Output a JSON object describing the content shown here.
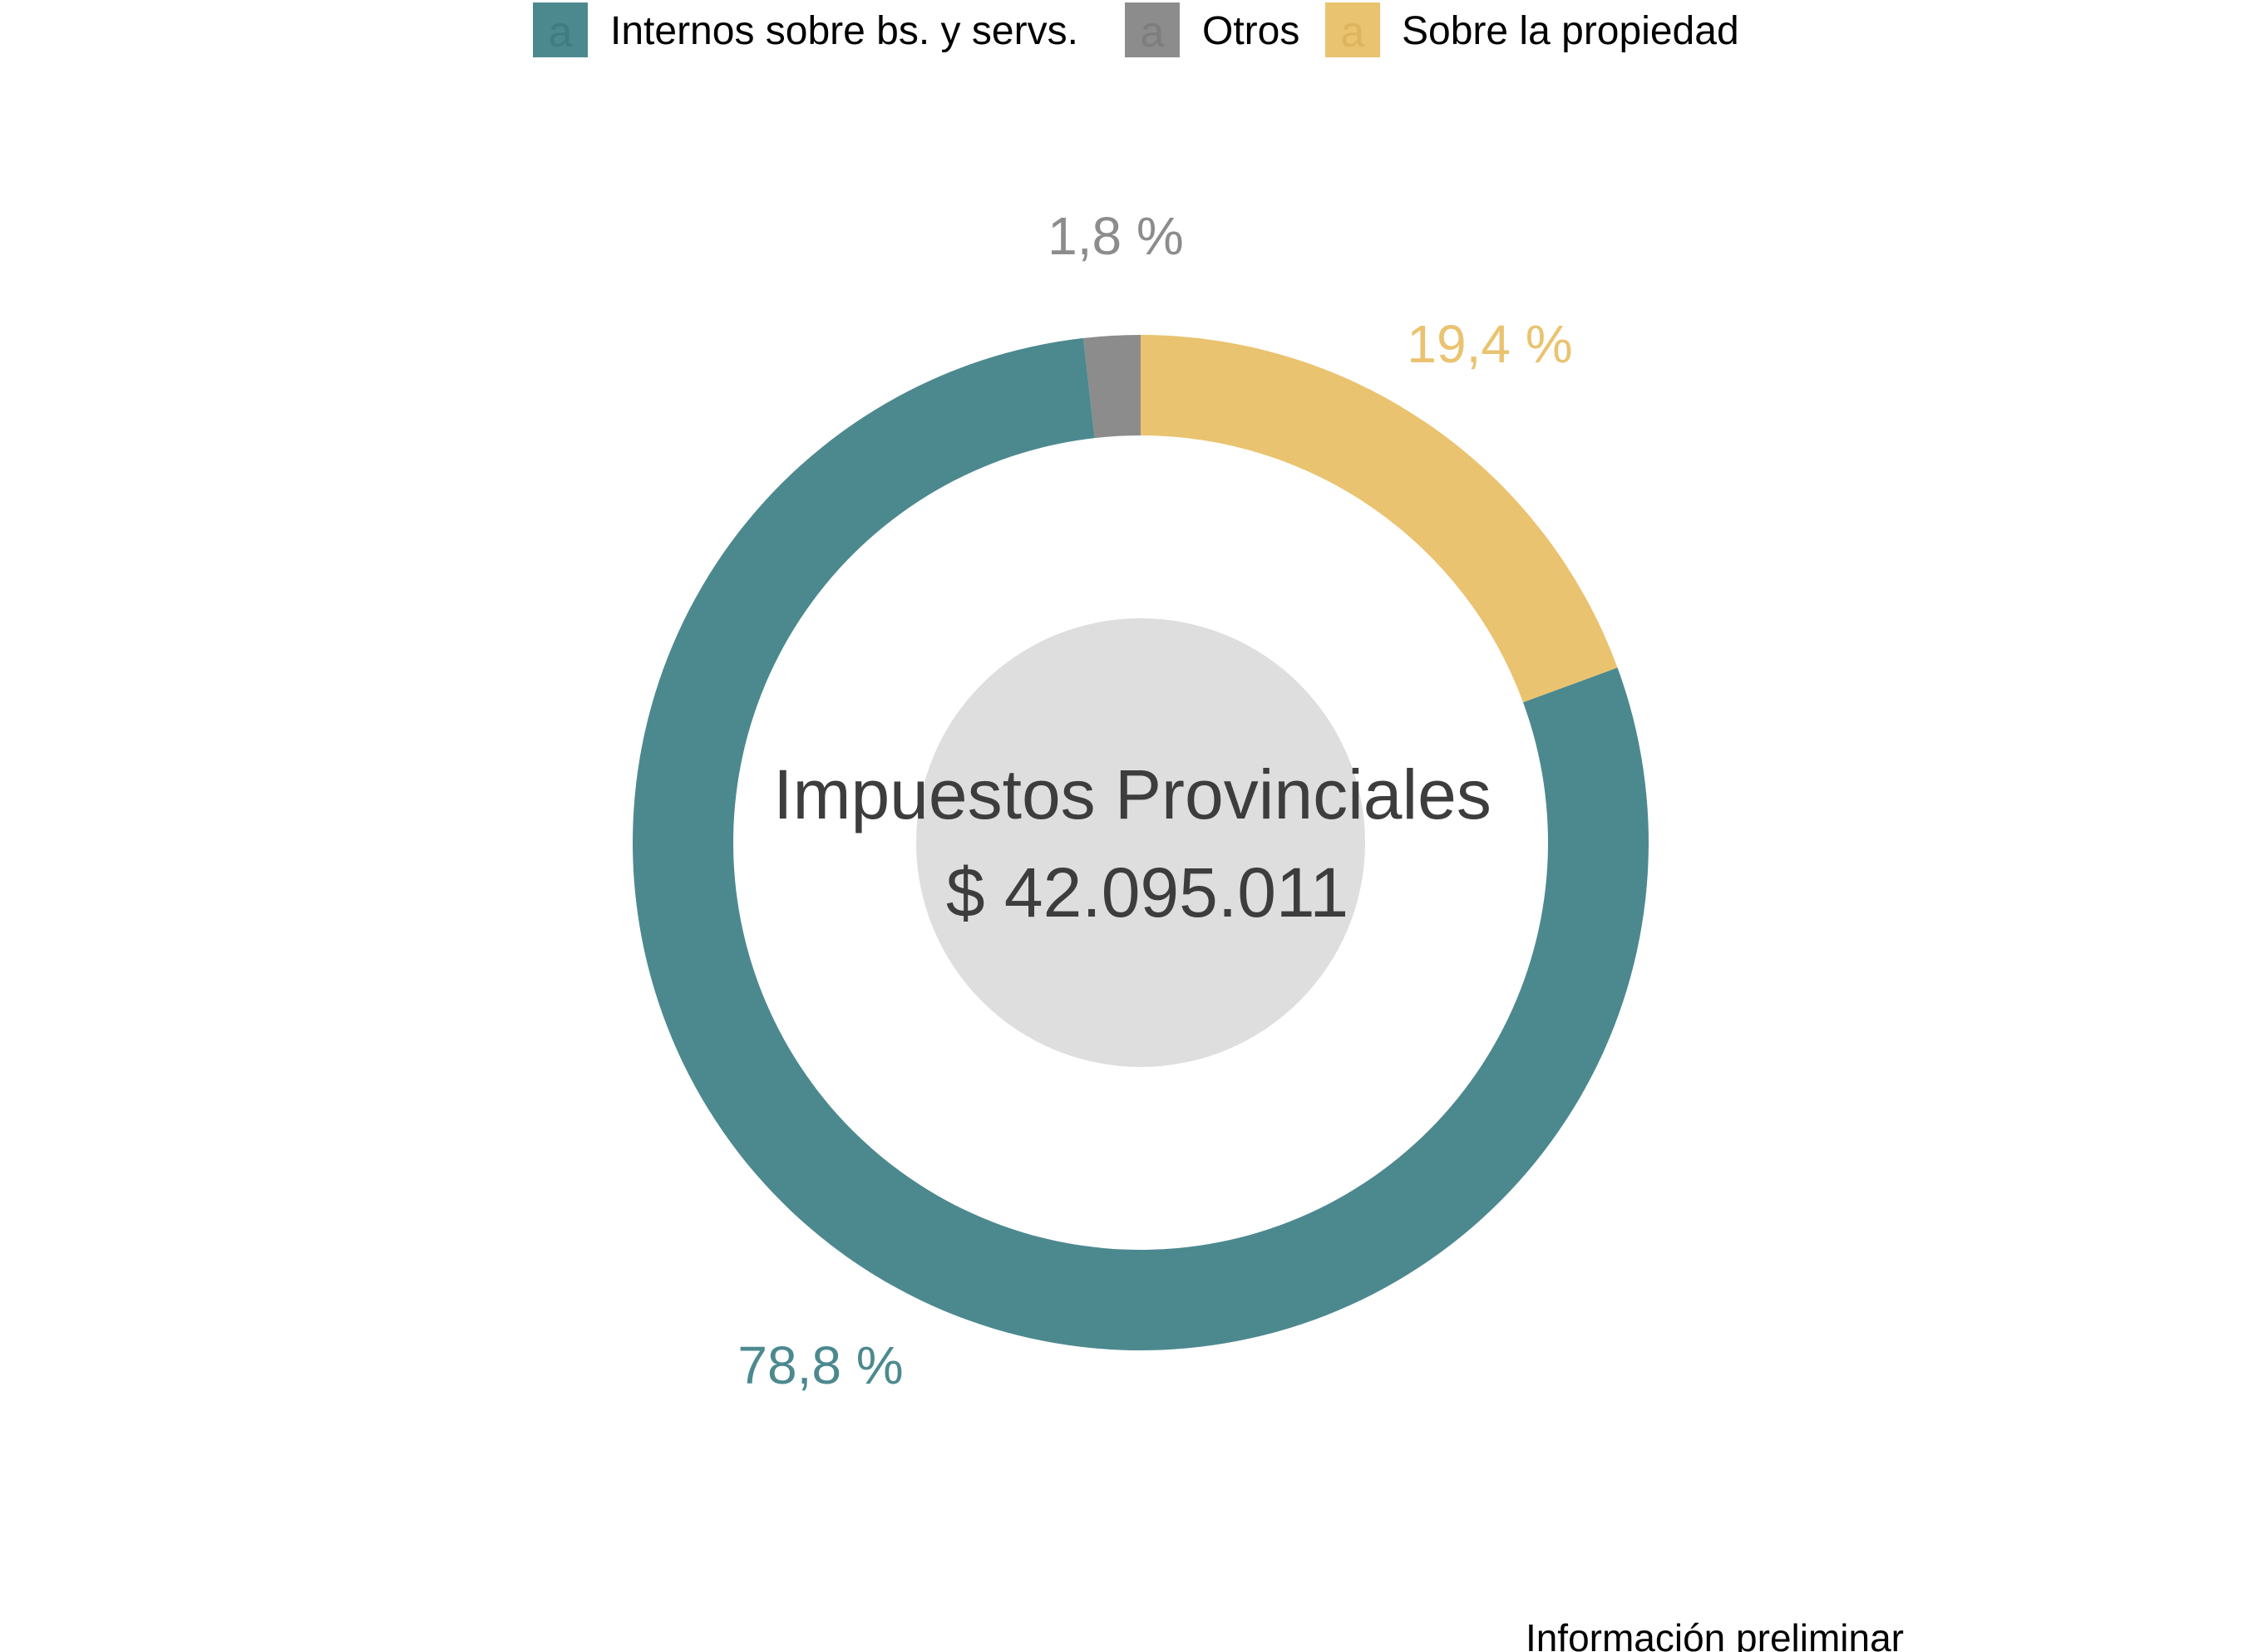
{
  "chart_data": {
    "type": "pie",
    "style": "donut",
    "legend_position": "top",
    "categories": [
      "Internos sobre bs. y servs.",
      "Otros",
      "Sobre la propiedad"
    ],
    "values": [
      78.8,
      1.8,
      19.4
    ],
    "labels": [
      "78,8 %",
      "1,8 %",
      "19,4 %"
    ],
    "colors": [
      "#4c898f",
      "#8c8c8c",
      "#eac370"
    ],
    "center_title": "Impuestos Provinciales",
    "center_value": "$ 42.095.011",
    "caption": "Información preliminar"
  }
}
